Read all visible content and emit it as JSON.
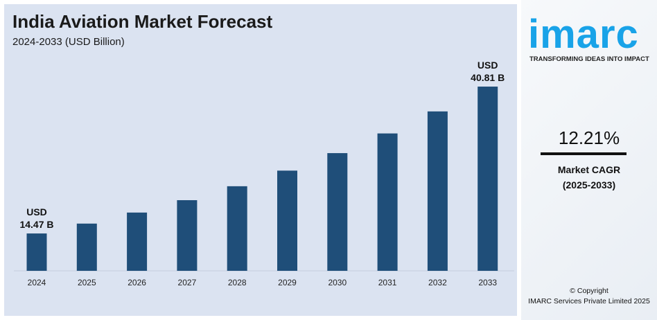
{
  "title": "India Aviation Market Forecast",
  "subtitle": "2024-2033 (USD Billion)",
  "brand": {
    "logo": "imarc",
    "tagline": "TRANSFORMING IDEAS INTO IMPACT",
    "color": "#19a3e8"
  },
  "cagr": {
    "value": "12.21%",
    "label_line1": "Market CAGR",
    "label_line2": "(2025-2033)"
  },
  "copyright": {
    "line1": "© Copyright",
    "line2": "IMARC Services Private Limited 2025"
  },
  "chart_data": {
    "type": "bar",
    "title": "India Aviation Market Forecast",
    "subtitle": "2024-2033 (USD Billion)",
    "categories": [
      "2024",
      "2025",
      "2026",
      "2027",
      "2028",
      "2029",
      "2030",
      "2031",
      "2032",
      "2033"
    ],
    "values": [
      14.47,
      16.24,
      18.22,
      20.44,
      22.94,
      25.74,
      28.88,
      32.41,
      36.36,
      40.81
    ],
    "data_labels": {
      "0": [
        "USD",
        "14.47 B"
      ],
      "9": [
        "USD",
        "40.81 B"
      ]
    },
    "bar_color": "#1f4e79",
    "grid": false,
    "xlabel": "",
    "ylabel": ""
  }
}
